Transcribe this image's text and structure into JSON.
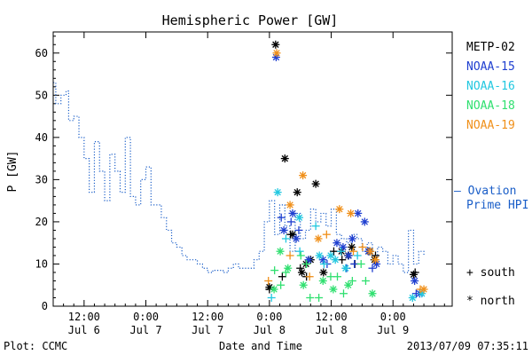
{
  "chart_data": {
    "type": "scatter",
    "title": "Hemispheric Power [GW]",
    "ylabel": "P [GW]",
    "xlabel": "Date and Time",
    "footer_left": "Plot: CCMC",
    "footer_right": "2013/07/09 07:35:11",
    "ylim": [
      0,
      65
    ],
    "xlim_hours": [
      0,
      77.5
    ],
    "yticks": [
      0,
      10,
      20,
      30,
      40,
      50,
      60
    ],
    "xticks": [
      {
        "hour": 6,
        "top": "12:00",
        "bottom": "Jul 6"
      },
      {
        "hour": 18,
        "top": "0:00",
        "bottom": "Jul 7"
      },
      {
        "hour": 30,
        "top": "12:00",
        "bottom": "Jul 7"
      },
      {
        "hour": 42,
        "top": "0:00",
        "bottom": "Jul 8"
      },
      {
        "hour": 54,
        "top": "12:00",
        "bottom": "Jul 8"
      },
      {
        "hour": 66,
        "top": "0:00",
        "bottom": "Jul 9"
      }
    ],
    "legend": {
      "satellites": [
        {
          "name": "METP-02",
          "color": "#000000"
        },
        {
          "name": "NOAA-15",
          "color": "#1f3fd0"
        },
        {
          "name": "NOAA-16",
          "color": "#22c8e0"
        },
        {
          "name": "NOAA-18",
          "color": "#30e070"
        },
        {
          "name": "NOAA-19",
          "color": "#f0901a"
        }
      ],
      "ovation_line1": "— Ovation",
      "ovation_line2": "Prime HPI",
      "ovation_color": "#1a5ec8",
      "south_label": "+ south",
      "north_label": "* north"
    },
    "ovation_series": [
      [
        0,
        53
      ],
      [
        0.5,
        48
      ],
      [
        1.5,
        50
      ],
      [
        2.5,
        51
      ],
      [
        3,
        44
      ],
      [
        4,
        45
      ],
      [
        5,
        40
      ],
      [
        6,
        35
      ],
      [
        7,
        27
      ],
      [
        8,
        39
      ],
      [
        9,
        32
      ],
      [
        10,
        25
      ],
      [
        11,
        36
      ],
      [
        12,
        32
      ],
      [
        13,
        27
      ],
      [
        14,
        40
      ],
      [
        15,
        26
      ],
      [
        16,
        24
      ],
      [
        17,
        30
      ],
      [
        18,
        33
      ],
      [
        19,
        24
      ],
      [
        21,
        21
      ],
      [
        22,
        18
      ],
      [
        23,
        15
      ],
      [
        24,
        14
      ],
      [
        25,
        12
      ],
      [
        26,
        11
      ],
      [
        28,
        10
      ],
      [
        29,
        9
      ],
      [
        30,
        8
      ],
      [
        31,
        8.5
      ],
      [
        33,
        8
      ],
      [
        34,
        9
      ],
      [
        35,
        10
      ],
      [
        36,
        9
      ],
      [
        37,
        9
      ],
      [
        38,
        9
      ],
      [
        39,
        11
      ],
      [
        40,
        13
      ],
      [
        41,
        20
      ],
      [
        42,
        25
      ],
      [
        43,
        17
      ],
      [
        44,
        24
      ],
      [
        45,
        19
      ],
      [
        46,
        13
      ],
      [
        47,
        22
      ],
      [
        48,
        16
      ],
      [
        49,
        18
      ],
      [
        50,
        23
      ],
      [
        51,
        20
      ],
      [
        52,
        22
      ],
      [
        53,
        19
      ],
      [
        54,
        23
      ],
      [
        55,
        17
      ],
      [
        56,
        16
      ],
      [
        57,
        15
      ],
      [
        58,
        17
      ],
      [
        59,
        16
      ],
      [
        60,
        13
      ],
      [
        61,
        15
      ],
      [
        62,
        12
      ],
      [
        63,
        14
      ],
      [
        64,
        13
      ],
      [
        65,
        10
      ],
      [
        66,
        12
      ],
      [
        67,
        10
      ],
      [
        68,
        8
      ],
      [
        69,
        18
      ],
      [
        70,
        10
      ],
      [
        71,
        13
      ],
      [
        72,
        12
      ]
    ],
    "series": [
      {
        "name": "METP-02",
        "color": "#000000",
        "north": [
          [
            43.2,
            62
          ],
          [
            45.0,
            35
          ],
          [
            46.5,
            17
          ],
          [
            47.4,
            27
          ],
          [
            48.3,
            8
          ],
          [
            49.1,
            10
          ],
          [
            50.0,
            11
          ],
          [
            51.0,
            29
          ],
          [
            52.5,
            8
          ],
          [
            56.0,
            13
          ],
          [
            57.3,
            12
          ],
          [
            58.0,
            14
          ],
          [
            61.5,
            13
          ],
          [
            62.4,
            11
          ],
          [
            70.0,
            7.5
          ],
          [
            42.0,
            4.5
          ]
        ],
        "south": [
          [
            42.0,
            4
          ],
          [
            44.5,
            7
          ],
          [
            46.1,
            17
          ],
          [
            48.0,
            9
          ],
          [
            49.2,
            7
          ],
          [
            54.5,
            13
          ],
          [
            56.1,
            11
          ],
          [
            58.6,
            10
          ],
          [
            62.6,
            12
          ],
          [
            70.3,
            8
          ]
        ]
      },
      {
        "name": "NOAA-15",
        "color": "#1f3fd0",
        "north": [
          [
            43.3,
            59
          ],
          [
            44.8,
            18
          ],
          [
            46.5,
            22
          ],
          [
            47.2,
            16
          ],
          [
            49.6,
            11
          ],
          [
            52.4,
            11
          ],
          [
            55.1,
            15
          ],
          [
            56.3,
            14
          ],
          [
            57.4,
            12
          ],
          [
            58.1,
            16
          ],
          [
            59.2,
            22
          ],
          [
            60.5,
            20
          ],
          [
            61.2,
            13
          ],
          [
            62.8,
            10
          ],
          [
            70.2,
            6
          ],
          [
            71.2,
            3
          ]
        ],
        "south": [
          [
            44.3,
            21
          ],
          [
            46.2,
            20
          ],
          [
            47.7,
            18
          ],
          [
            53.2,
            10
          ],
          [
            57.0,
            9
          ],
          [
            58.5,
            10
          ],
          [
            62.0,
            9
          ],
          [
            70.5,
            3
          ]
        ]
      },
      {
        "name": "NOAA-16",
        "color": "#22c8e0",
        "north": [
          [
            43.6,
            27
          ],
          [
            47.8,
            21
          ],
          [
            51.7,
            12
          ],
          [
            53.9,
            12
          ],
          [
            54.8,
            11
          ],
          [
            56.8,
            9
          ],
          [
            69.8,
            2
          ],
          [
            71.6,
            3
          ]
        ],
        "south": [
          [
            42.4,
            2
          ],
          [
            45.2,
            16
          ],
          [
            47.9,
            13
          ],
          [
            51.0,
            19
          ],
          [
            52.6,
            10
          ],
          [
            55.9,
            13
          ],
          [
            59.1,
            12
          ]
        ]
      },
      {
        "name": "NOAA-18",
        "color": "#30e070",
        "north": [
          [
            42.9,
            4
          ],
          [
            44.1,
            13
          ],
          [
            45.6,
            9
          ],
          [
            48.6,
            5
          ],
          [
            52.4,
            6
          ],
          [
            54.4,
            4
          ],
          [
            57.3,
            5
          ],
          [
            62.0,
            3
          ]
        ],
        "south": [
          [
            43.0,
            8.5
          ],
          [
            44.2,
            5
          ],
          [
            45.2,
            8
          ],
          [
            48.1,
            12
          ],
          [
            49.2,
            10
          ],
          [
            49.9,
            2
          ],
          [
            51.6,
            2
          ],
          [
            53.9,
            7
          ],
          [
            55.2,
            7
          ],
          [
            56.4,
            3
          ],
          [
            58.1,
            6
          ],
          [
            59.8,
            10
          ],
          [
            60.7,
            6
          ]
        ]
      },
      {
        "name": "NOAA-19",
        "color": "#f0901a",
        "north": [
          [
            43.4,
            60
          ],
          [
            46.0,
            24
          ],
          [
            48.5,
            31
          ],
          [
            51.5,
            16
          ],
          [
            55.6,
            23
          ],
          [
            57.8,
            22
          ],
          [
            61.6,
            13
          ],
          [
            62.6,
            11
          ],
          [
            72.0,
            4
          ]
        ],
        "south": [
          [
            41.8,
            6
          ],
          [
            46.0,
            12
          ],
          [
            49.8,
            7
          ],
          [
            53.1,
            17
          ],
          [
            58.3,
            13
          ],
          [
            60.1,
            14
          ],
          [
            71.3,
            4
          ]
        ]
      }
    ]
  }
}
